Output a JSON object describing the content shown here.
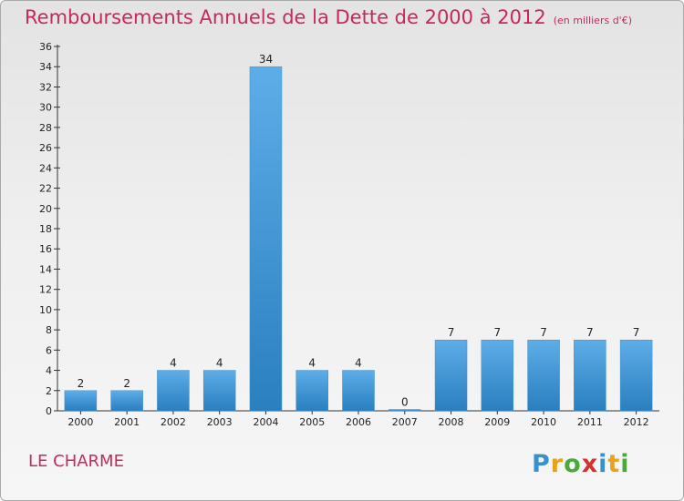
{
  "title": "Remboursements Annuels de la Dette de 2000 à 2012",
  "unit_note": "(en milliers d'€)",
  "commune": "LE CHARME",
  "logo_text": "Proxiti",
  "colors": {
    "bar_top": "#5dade8",
    "bar_bottom": "#2a7fbf",
    "title": "#c8285a"
  },
  "chart_data": {
    "type": "bar",
    "title": "Remboursements Annuels de la Dette de 2000 à 2012",
    "categories": [
      "2000",
      "2001",
      "2002",
      "2003",
      "2004",
      "2005",
      "2006",
      "2007",
      "2008",
      "2009",
      "2010",
      "2011",
      "2012"
    ],
    "values": [
      2,
      2,
      4,
      4,
      34,
      4,
      4,
      0,
      7,
      7,
      7,
      7,
      7
    ],
    "ylim": [
      0,
      36
    ],
    "yticks": [
      0,
      2,
      4,
      6,
      8,
      10,
      12,
      14,
      16,
      18,
      20,
      22,
      24,
      26,
      28,
      30,
      32,
      34,
      36
    ],
    "grid": false,
    "data_labels": true
  }
}
